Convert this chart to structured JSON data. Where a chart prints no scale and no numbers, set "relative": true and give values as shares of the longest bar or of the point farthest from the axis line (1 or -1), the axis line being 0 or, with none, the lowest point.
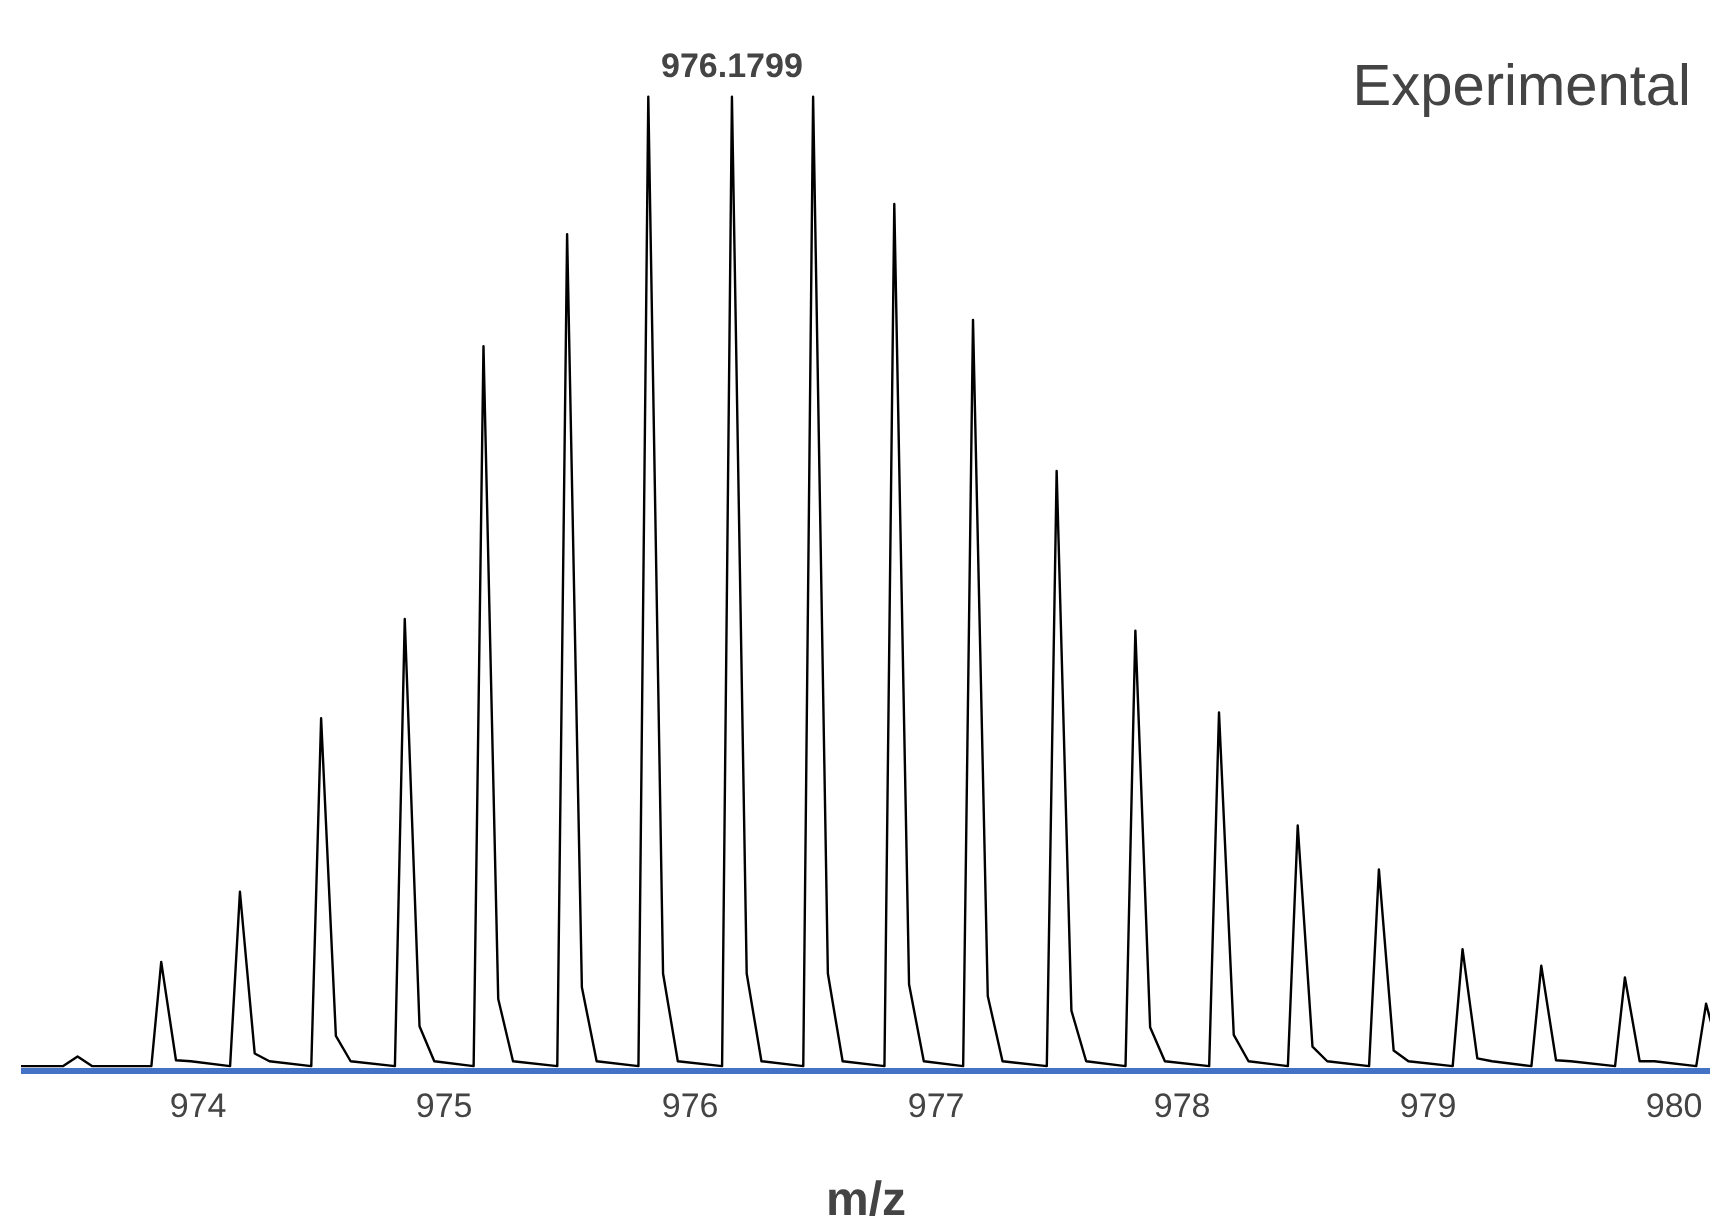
{
  "chart_data": {
    "type": "line",
    "relative": true,
    "xlabel": "m/z",
    "xlim": [
      973.28,
      980.15
    ],
    "xticks": [
      974,
      975,
      976,
      977,
      978,
      979,
      980
    ],
    "grid": false,
    "line_style": "solid",
    "series": [
      {
        "color": "#000000",
        "x": [
          973.28,
          973.45,
          973.51,
          973.57,
          973.81,
          973.85,
          973.91,
          973.97,
          974.13,
          974.17,
          974.23,
          974.29,
          974.46,
          974.5,
          974.56,
          974.62,
          974.8,
          974.84,
          974.9,
          974.96,
          975.12,
          975.16,
          975.22,
          975.28,
          975.46,
          975.5,
          975.56,
          975.62,
          975.79,
          975.83,
          975.89,
          975.95,
          976.13,
          976.17,
          976.23,
          976.29,
          976.46,
          976.5,
          976.56,
          976.62,
          976.79,
          976.83,
          976.89,
          976.95,
          977.11,
          977.15,
          977.21,
          977.27,
          977.45,
          977.49,
          977.55,
          977.61,
          977.77,
          977.81,
          977.87,
          977.93,
          978.11,
          978.15,
          978.21,
          978.27,
          978.43,
          978.47,
          978.53,
          978.59,
          978.76,
          978.8,
          978.86,
          978.92,
          979.1,
          979.14,
          979.2,
          979.26,
          979.42,
          979.46,
          979.52,
          979.58,
          979.76,
          979.8,
          979.86,
          979.92,
          980.09,
          980.13,
          980.15
        ],
        "values": [
          0.005,
          0.005,
          0.015,
          0.005,
          0.005,
          0.112,
          0.011,
          0.01,
          0.005,
          0.184,
          0.018,
          0.01,
          0.005,
          0.362,
          0.036,
          0.01,
          0.005,
          0.464,
          0.046,
          0.01,
          0.005,
          0.744,
          0.074,
          0.01,
          0.005,
          0.859,
          0.086,
          0.01,
          0.005,
          1,
          0.1,
          0.01,
          0.005,
          1,
          0.1,
          0.01,
          0.005,
          1,
          0.1,
          0.01,
          0.005,
          0.89,
          0.089,
          0.01,
          0.005,
          0.771,
          0.077,
          0.01,
          0.005,
          0.616,
          0.062,
          0.01,
          0.005,
          0.452,
          0.045,
          0.01,
          0.005,
          0.368,
          0.037,
          0.01,
          0.005,
          0.252,
          0.025,
          0.01,
          0.005,
          0.207,
          0.021,
          0.01,
          0.005,
          0.125,
          0.013,
          0.01,
          0.005,
          0.108,
          0.011,
          0.01,
          0.005,
          0.096,
          0.01,
          0.01,
          0.005,
          0.069,
          0.05
        ]
      }
    ],
    "annotations": [
      {
        "text": "976.1799",
        "x": 976.17,
        "y": 1
      },
      "Experimental"
    ]
  }
}
